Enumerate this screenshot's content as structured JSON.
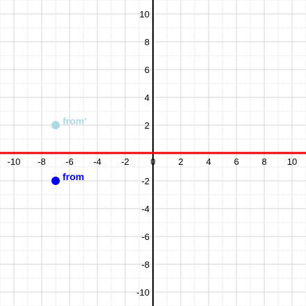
{
  "chart_data": {
    "type": "scatter",
    "title": "",
    "xlabel": "",
    "ylabel": "",
    "xlim": [
      -11,
      11
    ],
    "ylim": [
      -11,
      11
    ],
    "x_ticks": [
      -10,
      -8,
      -6,
      -4,
      -2,
      0,
      2,
      4,
      6,
      8,
      10
    ],
    "y_ticks": [
      -10,
      -8,
      -6,
      -4,
      -2,
      2,
      4,
      6,
      8,
      10
    ],
    "x_tick_labels": [
      "-10",
      "-8",
      "-6",
      "-4",
      "-2",
      "0",
      "2",
      "4",
      "6",
      "8",
      "10"
    ],
    "y_tick_labels": [
      "-10",
      "-8",
      "-6",
      "-4",
      "-2",
      "2",
      "4",
      "6",
      "8",
      "10"
    ],
    "grid": true,
    "minor_grid_step": 1,
    "mirror_line": "x-axis",
    "points": [
      {
        "label": "from",
        "x": -7,
        "y": -2,
        "color": "#0000ee"
      },
      {
        "label": "from'",
        "x": -7,
        "y": 2,
        "color": "#add8e6"
      }
    ],
    "colors": {
      "grid_minor": "#eeeeee",
      "grid_major": "#d4d4d4",
      "y_axis": "#000000",
      "mirror_line": "#ee0000"
    }
  }
}
